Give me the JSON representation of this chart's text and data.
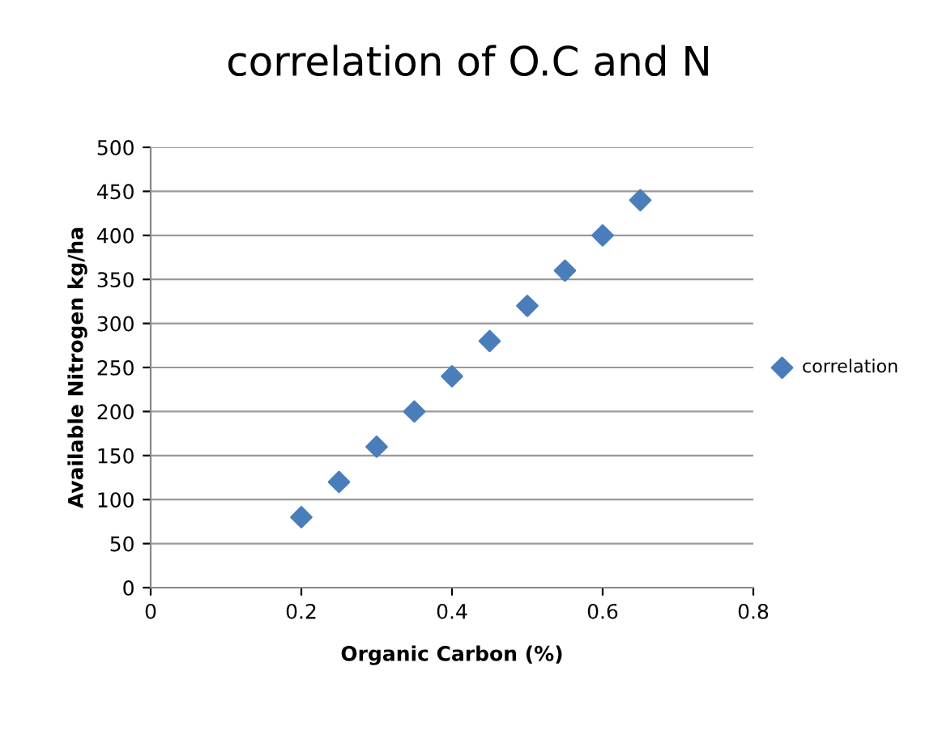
{
  "chart_data": {
    "type": "scatter",
    "title": "correlation of O.C and N",
    "xlabel": "Organic Carbon (%)",
    "ylabel": "Available Nitrogen kg/ha",
    "x": [
      0.2,
      0.25,
      0.3,
      0.35,
      0.4,
      0.45,
      0.5,
      0.55,
      0.6,
      0.65
    ],
    "series": [
      {
        "name": "correlation",
        "color": "#4a7ebb",
        "values": [
          80,
          120,
          160,
          200,
          240,
          280,
          320,
          360,
          400,
          440
        ]
      }
    ],
    "xlim": [
      0,
      0.8
    ],
    "xticks": [
      0,
      0.2,
      0.4,
      0.6,
      0.8
    ],
    "ylim": [
      0,
      500
    ],
    "yticks": [
      0,
      50,
      100,
      150,
      200,
      250,
      300,
      350,
      400,
      450,
      500
    ],
    "grid": "y",
    "legend": "right",
    "marker": "diamond"
  }
}
